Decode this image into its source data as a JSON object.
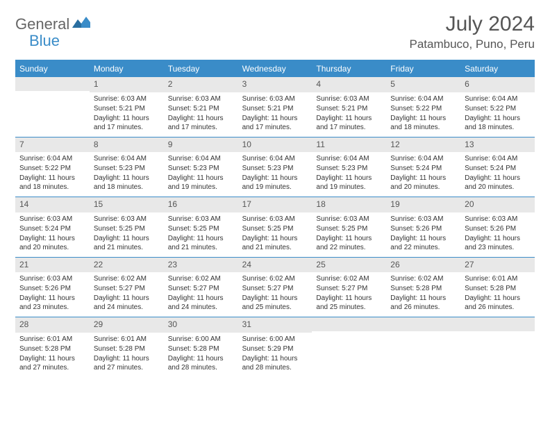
{
  "logo": {
    "part1": "General",
    "part2": "Blue"
  },
  "title": "July 2024",
  "location": "Patambuco, Puno, Peru",
  "colors": {
    "accent": "#3a8cc8",
    "header_bg": "#3a8cc8",
    "daynum_bg": "#e8e8e8",
    "text": "#333333",
    "title_text": "#555555"
  },
  "day_names": [
    "Sunday",
    "Monday",
    "Tuesday",
    "Wednesday",
    "Thursday",
    "Friday",
    "Saturday"
  ],
  "weeks": [
    [
      {
        "day": "",
        "sunrise": "",
        "sunset": "",
        "daylight": ""
      },
      {
        "day": "1",
        "sunrise": "Sunrise: 6:03 AM",
        "sunset": "Sunset: 5:21 PM",
        "daylight": "Daylight: 11 hours and 17 minutes."
      },
      {
        "day": "2",
        "sunrise": "Sunrise: 6:03 AM",
        "sunset": "Sunset: 5:21 PM",
        "daylight": "Daylight: 11 hours and 17 minutes."
      },
      {
        "day": "3",
        "sunrise": "Sunrise: 6:03 AM",
        "sunset": "Sunset: 5:21 PM",
        "daylight": "Daylight: 11 hours and 17 minutes."
      },
      {
        "day": "4",
        "sunrise": "Sunrise: 6:03 AM",
        "sunset": "Sunset: 5:21 PM",
        "daylight": "Daylight: 11 hours and 17 minutes."
      },
      {
        "day": "5",
        "sunrise": "Sunrise: 6:04 AM",
        "sunset": "Sunset: 5:22 PM",
        "daylight": "Daylight: 11 hours and 18 minutes."
      },
      {
        "day": "6",
        "sunrise": "Sunrise: 6:04 AM",
        "sunset": "Sunset: 5:22 PM",
        "daylight": "Daylight: 11 hours and 18 minutes."
      }
    ],
    [
      {
        "day": "7",
        "sunrise": "Sunrise: 6:04 AM",
        "sunset": "Sunset: 5:22 PM",
        "daylight": "Daylight: 11 hours and 18 minutes."
      },
      {
        "day": "8",
        "sunrise": "Sunrise: 6:04 AM",
        "sunset": "Sunset: 5:23 PM",
        "daylight": "Daylight: 11 hours and 18 minutes."
      },
      {
        "day": "9",
        "sunrise": "Sunrise: 6:04 AM",
        "sunset": "Sunset: 5:23 PM",
        "daylight": "Daylight: 11 hours and 19 minutes."
      },
      {
        "day": "10",
        "sunrise": "Sunrise: 6:04 AM",
        "sunset": "Sunset: 5:23 PM",
        "daylight": "Daylight: 11 hours and 19 minutes."
      },
      {
        "day": "11",
        "sunrise": "Sunrise: 6:04 AM",
        "sunset": "Sunset: 5:23 PM",
        "daylight": "Daylight: 11 hours and 19 minutes."
      },
      {
        "day": "12",
        "sunrise": "Sunrise: 6:04 AM",
        "sunset": "Sunset: 5:24 PM",
        "daylight": "Daylight: 11 hours and 20 minutes."
      },
      {
        "day": "13",
        "sunrise": "Sunrise: 6:04 AM",
        "sunset": "Sunset: 5:24 PM",
        "daylight": "Daylight: 11 hours and 20 minutes."
      }
    ],
    [
      {
        "day": "14",
        "sunrise": "Sunrise: 6:03 AM",
        "sunset": "Sunset: 5:24 PM",
        "daylight": "Daylight: 11 hours and 20 minutes."
      },
      {
        "day": "15",
        "sunrise": "Sunrise: 6:03 AM",
        "sunset": "Sunset: 5:25 PM",
        "daylight": "Daylight: 11 hours and 21 minutes."
      },
      {
        "day": "16",
        "sunrise": "Sunrise: 6:03 AM",
        "sunset": "Sunset: 5:25 PM",
        "daylight": "Daylight: 11 hours and 21 minutes."
      },
      {
        "day": "17",
        "sunrise": "Sunrise: 6:03 AM",
        "sunset": "Sunset: 5:25 PM",
        "daylight": "Daylight: 11 hours and 21 minutes."
      },
      {
        "day": "18",
        "sunrise": "Sunrise: 6:03 AM",
        "sunset": "Sunset: 5:25 PM",
        "daylight": "Daylight: 11 hours and 22 minutes."
      },
      {
        "day": "19",
        "sunrise": "Sunrise: 6:03 AM",
        "sunset": "Sunset: 5:26 PM",
        "daylight": "Daylight: 11 hours and 22 minutes."
      },
      {
        "day": "20",
        "sunrise": "Sunrise: 6:03 AM",
        "sunset": "Sunset: 5:26 PM",
        "daylight": "Daylight: 11 hours and 23 minutes."
      }
    ],
    [
      {
        "day": "21",
        "sunrise": "Sunrise: 6:03 AM",
        "sunset": "Sunset: 5:26 PM",
        "daylight": "Daylight: 11 hours and 23 minutes."
      },
      {
        "day": "22",
        "sunrise": "Sunrise: 6:02 AM",
        "sunset": "Sunset: 5:27 PM",
        "daylight": "Daylight: 11 hours and 24 minutes."
      },
      {
        "day": "23",
        "sunrise": "Sunrise: 6:02 AM",
        "sunset": "Sunset: 5:27 PM",
        "daylight": "Daylight: 11 hours and 24 minutes."
      },
      {
        "day": "24",
        "sunrise": "Sunrise: 6:02 AM",
        "sunset": "Sunset: 5:27 PM",
        "daylight": "Daylight: 11 hours and 25 minutes."
      },
      {
        "day": "25",
        "sunrise": "Sunrise: 6:02 AM",
        "sunset": "Sunset: 5:27 PM",
        "daylight": "Daylight: 11 hours and 25 minutes."
      },
      {
        "day": "26",
        "sunrise": "Sunrise: 6:02 AM",
        "sunset": "Sunset: 5:28 PM",
        "daylight": "Daylight: 11 hours and 26 minutes."
      },
      {
        "day": "27",
        "sunrise": "Sunrise: 6:01 AM",
        "sunset": "Sunset: 5:28 PM",
        "daylight": "Daylight: 11 hours and 26 minutes."
      }
    ],
    [
      {
        "day": "28",
        "sunrise": "Sunrise: 6:01 AM",
        "sunset": "Sunset: 5:28 PM",
        "daylight": "Daylight: 11 hours and 27 minutes."
      },
      {
        "day": "29",
        "sunrise": "Sunrise: 6:01 AM",
        "sunset": "Sunset: 5:28 PM",
        "daylight": "Daylight: 11 hours and 27 minutes."
      },
      {
        "day": "30",
        "sunrise": "Sunrise: 6:00 AM",
        "sunset": "Sunset: 5:28 PM",
        "daylight": "Daylight: 11 hours and 28 minutes."
      },
      {
        "day": "31",
        "sunrise": "Sunrise: 6:00 AM",
        "sunset": "Sunset: 5:29 PM",
        "daylight": "Daylight: 11 hours and 28 minutes."
      },
      {
        "day": "",
        "sunrise": "",
        "sunset": "",
        "daylight": ""
      },
      {
        "day": "",
        "sunrise": "",
        "sunset": "",
        "daylight": ""
      },
      {
        "day": "",
        "sunrise": "",
        "sunset": "",
        "daylight": ""
      }
    ]
  ]
}
